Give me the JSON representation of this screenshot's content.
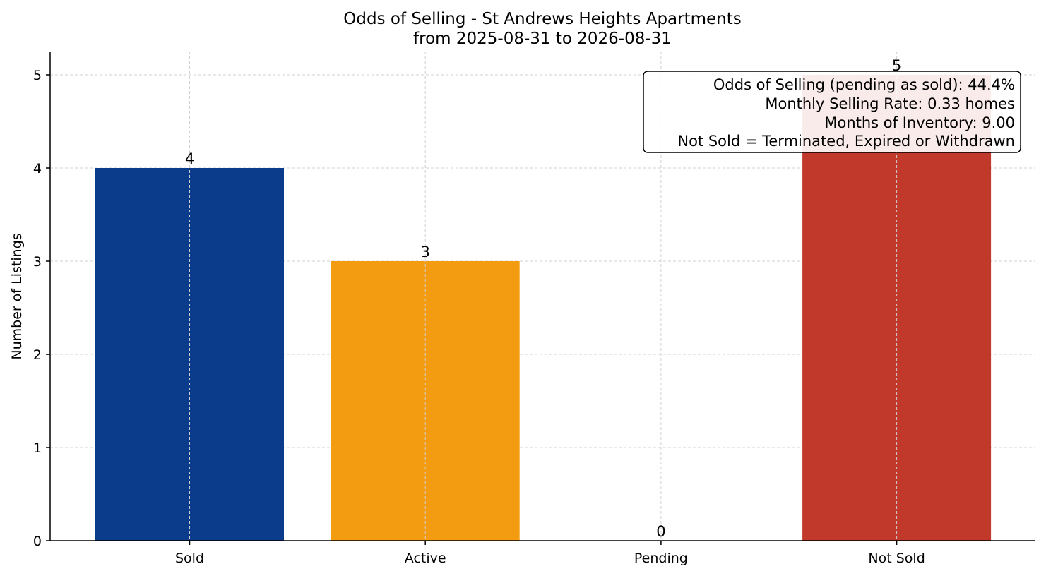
{
  "chart_data": {
    "type": "bar",
    "title": "Odds of Selling - St Andrews Heights Apartments",
    "subtitle": "from 2025-08-31 to 2026-08-31",
    "xlabel": "",
    "ylabel": "Number of Listings",
    "categories": [
      "Sold",
      "Active",
      "Pending",
      "Not Sold"
    ],
    "values": [
      4,
      3,
      0,
      5
    ],
    "colors": [
      "#0b3c8c",
      "#f39c12",
      "#2e8b57",
      "#c0392b"
    ],
    "ylim": [
      0,
      5.25
    ],
    "yticks": [
      0,
      1,
      2,
      3,
      4,
      5
    ],
    "grid": true,
    "annotation_box": {
      "placement": "top-right",
      "lines": [
        "Odds of Selling (pending as sold): 44.4%",
        "Monthly Selling Rate: 0.33 homes",
        "Months of Inventory: 9.00",
        "Not Sold = Terminated, Expired or Withdrawn"
      ]
    }
  }
}
